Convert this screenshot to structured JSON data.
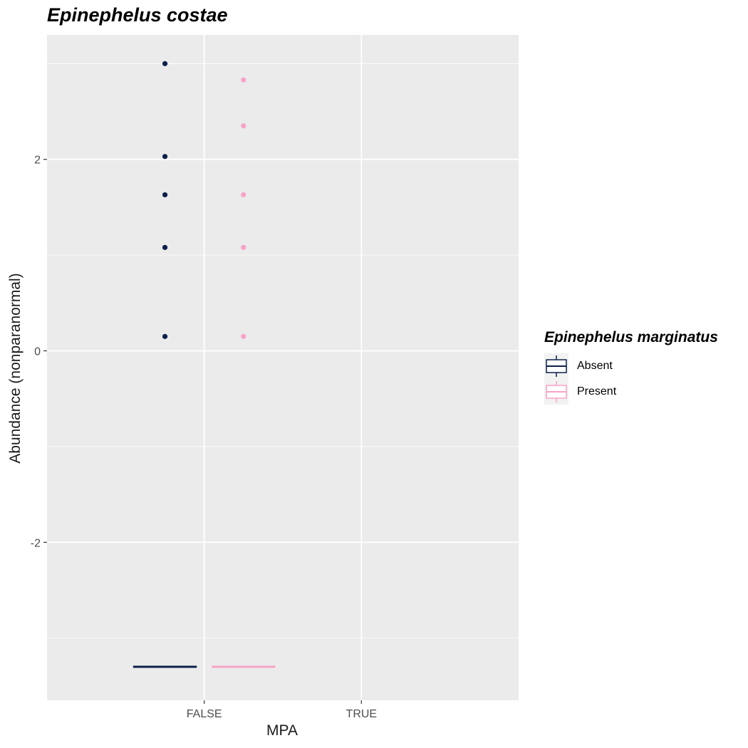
{
  "chart_data": {
    "type": "boxplot",
    "title": "Epinephelus costae",
    "xlabel": "MPA",
    "ylabel": "Abundance (nonparanormal)",
    "categories": [
      "FALSE",
      "TRUE"
    ],
    "ylim": [
      -3.65,
      3.3
    ],
    "yticks": [
      -2,
      0,
      2
    ],
    "grid": true,
    "legend": {
      "title": "Epinephelus marginatus",
      "position": "right",
      "items": [
        {
          "label": "Absent",
          "color": "#0d1f4a"
        },
        {
          "label": "Present",
          "color": "#f7a3c8"
        }
      ]
    },
    "series": [
      {
        "name": "Absent",
        "color": "#0d1f4a",
        "category": "FALSE",
        "box_median": -3.3,
        "outliers": [
          3.0,
          2.03,
          1.63,
          1.08,
          0.15
        ]
      },
      {
        "name": "Present",
        "color": "#f7a3c8",
        "category": "FALSE",
        "box_median": -3.3,
        "outliers": [
          2.83,
          2.35,
          1.63,
          1.08,
          0.15
        ]
      }
    ]
  }
}
